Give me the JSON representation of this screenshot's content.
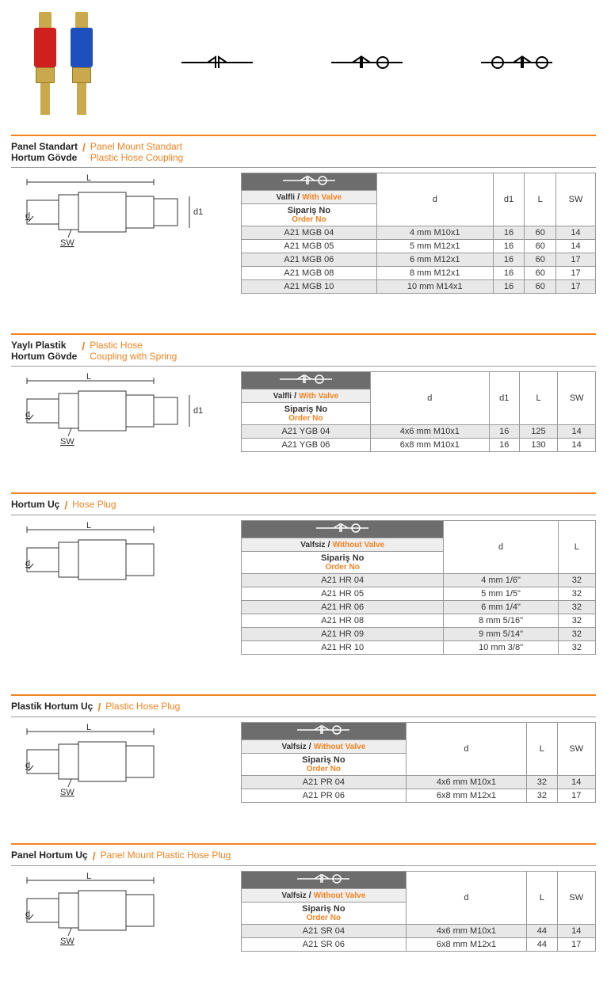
{
  "colors": {
    "orange": "#f58220",
    "grey_header": "#6d6d6d",
    "red_body": "#d01f1f",
    "blue_body": "#1e4fbf",
    "brass": "#c9a94b"
  },
  "symbols_count": 3,
  "sections": [
    {
      "title_tr": "Panel Standart\nHortum Gövde",
      "title_en": "Panel Mount Standart\nPlastic Hose Coupling",
      "valve_tr": "Valfli",
      "valve_en": "With Valve",
      "order_tr": "Sipariş No",
      "order_en": "Order No",
      "columns": [
        "d",
        "d1",
        "L",
        "SW"
      ],
      "diagram_labels": [
        "L",
        "d",
        "d1",
        "SW"
      ],
      "rows": [
        {
          "no": "A21 MGB 04",
          "cells": [
            "4 mm M10x1",
            "16",
            "60",
            "14"
          ]
        },
        {
          "no": "A21 MGB 05",
          "cells": [
            "5 mm M12x1",
            "16",
            "60",
            "14"
          ]
        },
        {
          "no": "A21 MGB 06",
          "cells": [
            "6 mm M12x1",
            "16",
            "60",
            "17"
          ]
        },
        {
          "no": "A21 MGB 08",
          "cells": [
            "8 mm M12x1",
            "16",
            "60",
            "17"
          ]
        },
        {
          "no": "A21 MGB 10",
          "cells": [
            "10 mm M14x1",
            "16",
            "60",
            "17"
          ]
        }
      ]
    },
    {
      "title_tr": "Yaylı Plastik\nHortum Gövde",
      "title_en": "Plastic Hose\nCoupling with Spring",
      "valve_tr": "Valfli",
      "valve_en": "With Valve",
      "order_tr": "Sipariş No",
      "order_en": "Order No",
      "columns": [
        "d",
        "d1",
        "L",
        "SW"
      ],
      "diagram_labels": [
        "L",
        "d",
        "d1",
        "SW"
      ],
      "rows": [
        {
          "no": "A21 YGB 04",
          "cells": [
            "4x6 mm M10x1",
            "16",
            "125",
            "14"
          ]
        },
        {
          "no": "A21 YGB 06",
          "cells": [
            "6x8 mm M10x1",
            "16",
            "130",
            "14"
          ]
        }
      ]
    },
    {
      "title_tr": "Hortum Uç",
      "title_en": "Hose Plug",
      "valve_tr": "Valfsiz",
      "valve_en": "Without Valve",
      "order_tr": "Sipariş No",
      "order_en": "Order No",
      "columns": [
        "d",
        "L"
      ],
      "diagram_labels": [
        "L",
        "d"
      ],
      "rows": [
        {
          "no": "A21 HR 04",
          "cells": [
            "4 mm 1/6\"",
            "32"
          ]
        },
        {
          "no": "A21 HR 05",
          "cells": [
            "5 mm 1/5\"",
            "32"
          ]
        },
        {
          "no": "A21 HR 06",
          "cells": [
            "6 mm 1/4\"",
            "32"
          ]
        },
        {
          "no": "A21 HR 08",
          "cells": [
            "8 mm 5/16\"",
            "32"
          ]
        },
        {
          "no": "A21 HR 09",
          "cells": [
            "9 mm 5/14\"",
            "32"
          ]
        },
        {
          "no": "A21 HR 10",
          "cells": [
            "10 mm 3/8\"",
            "32"
          ]
        }
      ]
    },
    {
      "title_tr": "Plastik Hortum Uç",
      "title_en": "Plastic Hose Plug",
      "valve_tr": "Valfsiz",
      "valve_en": "Without Valve",
      "order_tr": "Sipariş No",
      "order_en": "Order No",
      "columns": [
        "d",
        "L",
        "SW"
      ],
      "diagram_labels": [
        "L",
        "d",
        "SW"
      ],
      "rows": [
        {
          "no": "A21 PR 04",
          "cells": [
            "4x6 mm M10x1",
            "32",
            "14"
          ]
        },
        {
          "no": "A21 PR 06",
          "cells": [
            "6x8 mm M12x1",
            "32",
            "17"
          ]
        }
      ]
    },
    {
      "title_tr": "Panel Hortum Uç",
      "title_en": "Panel Mount Plastic Hose Plug",
      "valve_tr": "Valfsiz",
      "valve_en": "Without Valve",
      "order_tr": "Sipariş No",
      "order_en": "Order No",
      "columns": [
        "d",
        "L",
        "SW"
      ],
      "diagram_labels": [
        "L",
        "d",
        "SW"
      ],
      "rows": [
        {
          "no": "A21 SR 04",
          "cells": [
            "4x6 mm M10x1",
            "44",
            "14"
          ]
        },
        {
          "no": "A21 SR 06",
          "cells": [
            "6x8 mm M12x1",
            "44",
            "17"
          ]
        }
      ]
    }
  ]
}
